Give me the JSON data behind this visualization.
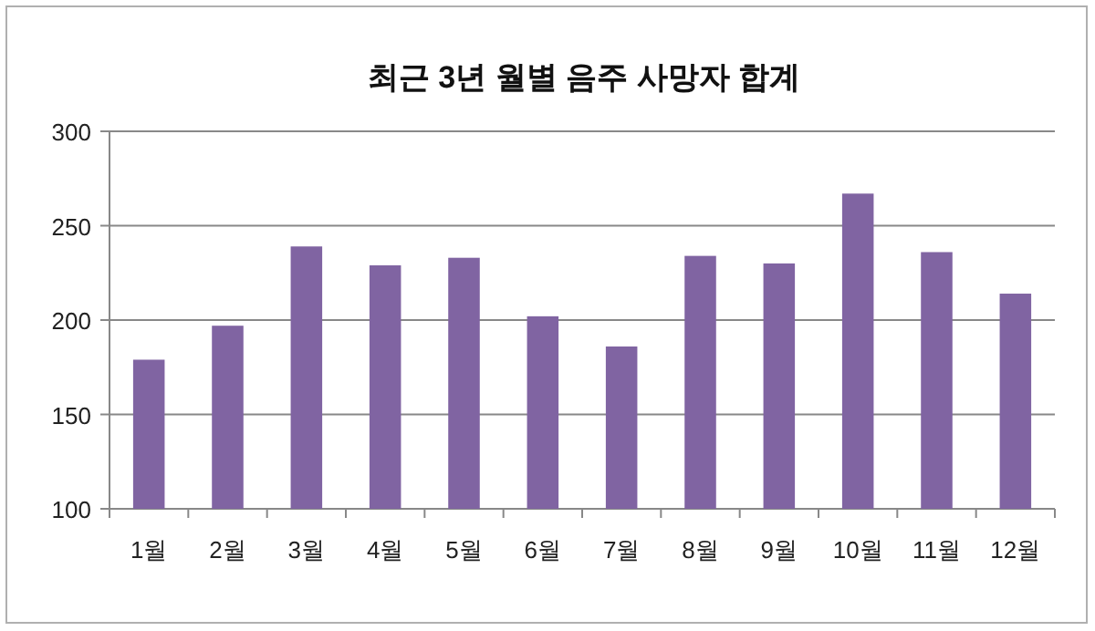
{
  "chart_data": {
    "type": "bar",
    "title": "최근 3년 월별 음주 사망자 합계",
    "categories": [
      "1월",
      "2월",
      "3월",
      "4월",
      "5월",
      "6월",
      "7월",
      "8월",
      "9월",
      "10월",
      "11월",
      "12월"
    ],
    "values": [
      179,
      197,
      239,
      229,
      233,
      202,
      186,
      234,
      230,
      267,
      236,
      214
    ],
    "color": "#8064a2",
    "ylim": [
      100,
      300
    ],
    "yticks": [
      100,
      150,
      200,
      250,
      300
    ],
    "grid": "y",
    "legend": false
  }
}
